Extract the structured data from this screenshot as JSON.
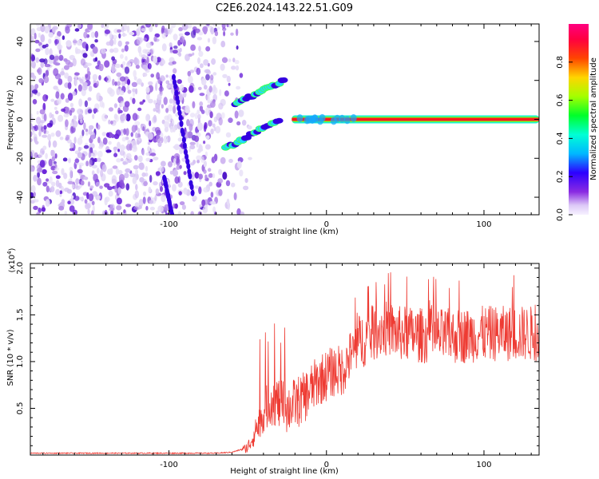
{
  "figure_title": "C2E6.2024.143.22.51.G09",
  "colors": {
    "snr_line": "#ee3b33",
    "tail_line": "#e83a2e",
    "axis": "#000000",
    "noise_colors": [
      "#e6ddf7",
      "#d4c0f3",
      "#b48be8",
      "#8a4fdc",
      "#6a23d9",
      "#4b10c8"
    ]
  },
  "chart_data": [
    {
      "type": "heatmap",
      "title": "",
      "xlabel": "Height of straight line (km)",
      "ylabel": "Frequency (Hz)",
      "xlim": [
        -188,
        135
      ],
      "ylim": [
        -49,
        49
      ],
      "xticks": [
        -100,
        0,
        100
      ],
      "yticks": [
        -40,
        -20,
        0,
        20,
        40
      ],
      "colorbar": {
        "label": "Normalized spectral amplitude",
        "range": [
          0.0,
          1.0
        ],
        "ticks": [
          "0.0",
          "0.2",
          "0.4",
          "0.6",
          "0.8"
        ],
        "tick_values": [
          0.0,
          0.2,
          0.4,
          0.6,
          0.8
        ]
      },
      "noise_region_x": [
        -188,
        -58
      ],
      "carrier": {
        "x_start": -22,
        "x_end": 135,
        "frequency": 0
      },
      "tracks": [
        {
          "x_start": -97,
          "y_start": 22,
          "x_end": -85,
          "y_end": -38
        },
        {
          "x_start": -103,
          "y_start": -30,
          "x_end": -98,
          "y_end": -49
        },
        {
          "x_start": -64,
          "y_start": -15,
          "x_end": -30,
          "y_end": 0
        },
        {
          "x_start": -58,
          "y_start": 8,
          "x_end": -27,
          "y_end": 20
        }
      ]
    },
    {
      "type": "line",
      "title": "",
      "xlabel": "Height of straight line (km)",
      "ylabel": "SNR (10 * v/v)",
      "y_multiplier": "(x10",
      "y_multiplier_exp": "4",
      "y_multiplier_close": ")",
      "xlim": [
        -188,
        135
      ],
      "ylim": [
        0,
        2.05
      ],
      "xticks": [
        -100,
        0,
        100
      ],
      "yticks": [
        0.5,
        1.0,
        1.5,
        2.0
      ],
      "ytick_labels": [
        "0.5",
        "1.0",
        "1.5",
        "2.0"
      ],
      "series": [
        {
          "x": [
            -188,
            -150,
            -100,
            -70,
            -60,
            -50,
            -45,
            -40,
            -35,
            -30,
            -25,
            -20,
            -15,
            -10,
            -5,
            0,
            5,
            10,
            15,
            20,
            25,
            30,
            35,
            40,
            45,
            50,
            60,
            70,
            80,
            90,
            100,
            110,
            120,
            130,
            135
          ],
          "y": [
            0.02,
            0.02,
            0.02,
            0.02,
            0.03,
            0.08,
            0.25,
            0.45,
            0.6,
            0.55,
            0.5,
            0.55,
            0.6,
            0.7,
            0.8,
            0.85,
            0.9,
            0.9,
            1.05,
            1.2,
            1.25,
            1.3,
            1.35,
            1.35,
            1.3,
            1.3,
            1.28,
            1.27,
            1.27,
            1.28,
            1.3,
            1.3,
            1.3,
            1.3,
            1.3
          ]
        }
      ]
    }
  ]
}
